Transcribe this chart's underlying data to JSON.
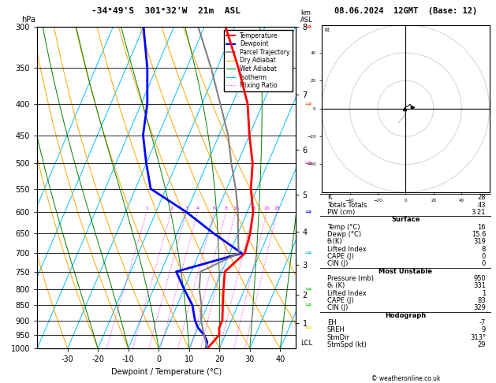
{
  "title_left": "-34°49'S  301°32'W  21m  ASL",
  "title_right": "08.06.2024  12GMT  (Base: 12)",
  "xlabel": "Dewpoint / Temperature (°C)",
  "ylabel_left": "hPa",
  "copyright": "© weatheronline.co.uk",
  "p_ticks": [
    300,
    350,
    400,
    450,
    500,
    550,
    600,
    650,
    700,
    750,
    800,
    850,
    900,
    950,
    1000
  ],
  "km_ticks": [
    1,
    2,
    3,
    4,
    5,
    6,
    7,
    8
  ],
  "km_pressures": [
    895,
    790,
    693,
    600,
    510,
    420,
    330,
    245
  ],
  "temp_profile_p": [
    1000,
    975,
    950,
    925,
    900,
    850,
    800,
    750,
    700,
    650,
    600,
    550,
    500,
    450,
    400,
    350,
    300
  ],
  "temp_profile_t": [
    16,
    17,
    18,
    17,
    17,
    15,
    13,
    11,
    15,
    14,
    12,
    8,
    5,
    0,
    -5,
    -13,
    -23
  ],
  "dewp_profile_p": [
    1000,
    975,
    950,
    925,
    900,
    850,
    800,
    750,
    700,
    650,
    600,
    550,
    500,
    450,
    400,
    350,
    300
  ],
  "dewp_profile_t": [
    15.6,
    15,
    13,
    10,
    8,
    5,
    0,
    -5,
    14,
    2,
    -10,
    -25,
    -30,
    -35,
    -38,
    -43,
    -50
  ],
  "parcel_profile_p": [
    1000,
    950,
    900,
    850,
    800,
    750,
    700,
    650,
    600,
    550,
    500,
    450,
    400,
    350,
    300
  ],
  "parcel_profile_t": [
    16,
    13,
    10,
    8,
    5,
    3,
    13,
    10,
    7,
    3,
    -2,
    -7,
    -14,
    -22,
    -32
  ],
  "bg_color": "#ffffff",
  "temp_color": "#ff0000",
  "dewp_color": "#0000ff",
  "parcel_color": "#808080",
  "dry_adiabat_color": "#ffa500",
  "wet_adiabat_color": "#008000",
  "isotherm_color": "#00bfff",
  "mixing_ratio_color": "#ff00ff",
  "mixing_ratio_values": [
    1,
    2,
    3,
    4,
    6,
    8,
    10,
    15,
    20,
    25
  ],
  "xmin": -40,
  "xmax": 45,
  "xtick_values": [
    -30,
    -20,
    -10,
    0,
    10,
    20,
    30,
    40
  ],
  "skew_deg": 45,
  "wind_barb_colors": [
    "#ff0000",
    "#ff4400",
    "#cc0088",
    "#0000ff",
    "#00aaff",
    "#00cc00",
    "#00cc00",
    "#ffcc00"
  ],
  "wind_barb_pressures": [
    300,
    400,
    500,
    600,
    700,
    800,
    850,
    925
  ],
  "hodo_trace_u": [
    -1,
    0,
    2,
    3,
    4,
    5
  ],
  "hodo_trace_v": [
    0,
    1,
    2,
    3,
    2,
    1
  ],
  "table_K": "28",
  "table_TT": "43",
  "table_PW": "3.21",
  "table_temp": "16",
  "table_dewp": "15.6",
  "table_theta_e_surf": "319",
  "table_li_surf": "8",
  "table_cape_surf": "0",
  "table_cin_surf": "0",
  "table_mu_pres": "950",
  "table_theta_e_mu": "331",
  "table_li_mu": "1",
  "table_cape_mu": "83",
  "table_cin_mu": "329",
  "table_EH": "-7",
  "table_SREH": "9",
  "table_StmDir": "313°",
  "table_StmSpd": "29"
}
